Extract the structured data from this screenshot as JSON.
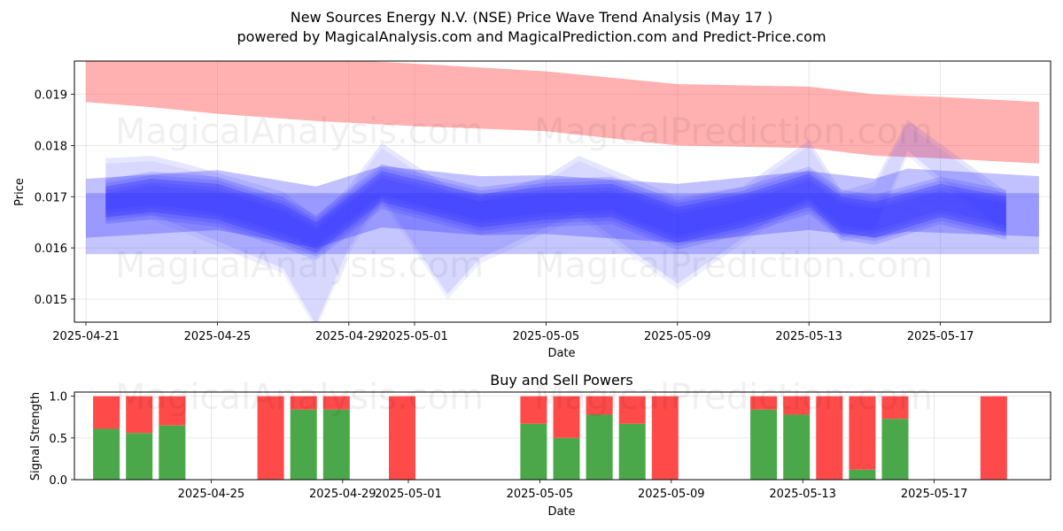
{
  "title_line1": "New Sources Energy N.V. (NSE) Price Wave Trend Analysis (May 17 )",
  "title_line2": "powered by MagicalAnalysis.com and MagicalPrediction.com and Predict-Price.com",
  "watermarks": [
    "MagicalAnalysis.com",
    "MagicalPrediction.com"
  ],
  "colors": {
    "resistance": "#ff6464",
    "wave": "#3232ff",
    "buy": "#4aa84a",
    "sell": "#ff4a4a"
  },
  "chart_data": [
    {
      "type": "area",
      "title": "",
      "xlabel": "Date",
      "ylabel": "Price",
      "xlim": [
        "2025-04-20.6",
        "2025-05-20.7"
      ],
      "ylim": [
        0.01455,
        0.01965
      ],
      "x_ticks": [
        "2025-04-21",
        "2025-04-25",
        "2025-04-29",
        "2025-05-01",
        "2025-05-05",
        "2025-05-09",
        "2025-05-13",
        "2025-05-17"
      ],
      "x_tick_days": [
        0,
        4,
        8,
        10,
        14,
        18,
        22,
        26
      ],
      "y_ticks": [
        "0.015",
        "0.016",
        "0.017",
        "0.018",
        "0.019"
      ],
      "y_tick_values": [
        0.015,
        0.016,
        0.017,
        0.018,
        0.019
      ],
      "grid": true,
      "series": [
        {
          "name": "upper resistance band",
          "x_days": [
            0,
            2,
            4,
            7,
            10,
            14,
            18,
            22,
            24,
            26,
            29
          ],
          "upper": [
            0.0197,
            0.0197,
            0.0197,
            0.0197,
            0.0196,
            0.01945,
            0.0192,
            0.01915,
            0.019,
            0.01895,
            0.01885
          ],
          "lower": [
            0.01885,
            0.01875,
            0.01862,
            0.01848,
            0.01838,
            0.01828,
            0.018,
            0.01795,
            0.0178,
            0.01775,
            0.01765
          ]
        },
        {
          "name": "outer flat band",
          "x_days": [
            0,
            29
          ],
          "upper": [
            0.01707,
            0.01707
          ],
          "lower": [
            0.01588,
            0.01588
          ]
        },
        {
          "name": "middle wave band",
          "x_days": [
            0,
            4,
            7,
            9,
            12,
            14,
            18,
            22,
            24,
            25,
            29
          ],
          "upper": [
            0.01735,
            0.01752,
            0.0172,
            0.0176,
            0.0174,
            0.01742,
            0.01725,
            0.0175,
            0.01735,
            0.01755,
            0.0174
          ],
          "lower": [
            0.0162,
            0.01635,
            0.016,
            0.0164,
            0.01625,
            0.01627,
            0.0161,
            0.01635,
            0.0162,
            0.01632,
            0.01622
          ]
        },
        {
          "name": "wide wave band",
          "x_days": [
            0.6,
            2,
            3,
            6,
            7,
            8,
            9,
            11,
            12,
            14,
            15,
            18,
            20,
            22,
            23,
            24,
            25,
            28
          ],
          "upper": [
            0.01775,
            0.0178,
            0.01765,
            0.0171,
            0.0166,
            0.0172,
            0.01805,
            0.0172,
            0.017,
            0.0174,
            0.0178,
            0.017,
            0.0172,
            0.0181,
            0.0171,
            0.0173,
            0.0185,
            0.0171
          ],
          "lower": [
            0.0166,
            0.01665,
            0.0164,
            0.0156,
            0.0145,
            0.016,
            0.017,
            0.0151,
            0.0158,
            0.0164,
            0.0167,
            0.0153,
            0.0162,
            0.017,
            0.0162,
            0.0164,
            0.0179,
            0.0163
          ]
        },
        {
          "name": "core wave",
          "x_days": [
            0.6,
            2,
            4,
            6,
            7,
            9,
            12,
            14,
            16,
            18,
            20,
            22,
            23,
            24,
            26,
            28
          ],
          "upper": [
            0.0172,
            0.01735,
            0.01725,
            0.01685,
            0.0165,
            0.0175,
            0.01705,
            0.0172,
            0.01725,
            0.0168,
            0.01705,
            0.01745,
            0.017,
            0.0169,
            0.01725,
            0.017
          ],
          "lower": [
            0.0166,
            0.0167,
            0.01655,
            0.01615,
            0.0159,
            0.0169,
            0.0164,
            0.01655,
            0.0166,
            0.0161,
            0.0164,
            0.0168,
            0.0163,
            0.0162,
            0.0166,
            0.0163
          ]
        }
      ]
    },
    {
      "type": "bar",
      "title": "Buy and Sell Powers",
      "xlabel": "Date",
      "ylabel": "Signal Strength",
      "xlim": [
        "2025-04-20.6",
        "2025-05-20.7"
      ],
      "ylim": [
        0,
        1.05
      ],
      "x_ticks": [
        "2025-04-25",
        "2025-04-29",
        "2025-05-01",
        "2025-05-05",
        "2025-05-09",
        "2025-05-13",
        "2025-05-17"
      ],
      "x_tick_days": [
        4,
        8,
        10,
        14,
        18,
        22,
        26
      ],
      "y_ticks": [
        "0.0",
        "0.5",
        "1.0"
      ],
      "y_tick_values": [
        0,
        0.5,
        1.0
      ],
      "grid": true,
      "bars": [
        {
          "day": 1,
          "buy": 0.61,
          "sell": 0.39
        },
        {
          "day": 2,
          "buy": 0.56,
          "sell": 0.44
        },
        {
          "day": 3,
          "buy": 0.65,
          "sell": 0.35
        },
        {
          "day": 6,
          "buy": 0.0,
          "sell": 1.0
        },
        {
          "day": 7,
          "buy": 0.84,
          "sell": 0.16
        },
        {
          "day": 8,
          "buy": 0.84,
          "sell": 0.16
        },
        {
          "day": 10,
          "buy": 0.0,
          "sell": 1.0
        },
        {
          "day": 14,
          "buy": 0.67,
          "sell": 0.33
        },
        {
          "day": 15,
          "buy": 0.5,
          "sell": 0.5
        },
        {
          "day": 16,
          "buy": 0.78,
          "sell": 0.22
        },
        {
          "day": 17,
          "buy": 0.67,
          "sell": 0.33
        },
        {
          "day": 18,
          "buy": 0.0,
          "sell": 1.0
        },
        {
          "day": 21,
          "buy": 0.84,
          "sell": 0.16
        },
        {
          "day": 22,
          "buy": 0.78,
          "sell": 0.22
        },
        {
          "day": 23,
          "buy": 0.0,
          "sell": 1.0
        },
        {
          "day": 24,
          "buy": 0.12,
          "sell": 0.88
        },
        {
          "day": 25,
          "buy": 0.73,
          "sell": 0.27
        },
        {
          "day": 28,
          "buy": 0.0,
          "sell": 1.0
        }
      ]
    }
  ]
}
